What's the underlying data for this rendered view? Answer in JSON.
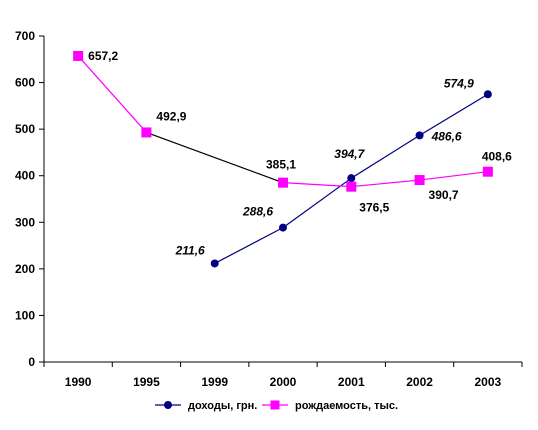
{
  "chart_data": {
    "type": "line",
    "title": "",
    "xlabel": "",
    "ylabel": "",
    "categories": [
      "1990",
      "1995",
      "1999",
      "2000",
      "2001",
      "2002",
      "2003"
    ],
    "y_ticks": [
      "0",
      "100",
      "200",
      "300",
      "400",
      "500",
      "600",
      "700"
    ],
    "ylim": [
      0,
      700
    ],
    "grid": false,
    "legend_position": "bottom",
    "series": [
      {
        "name": "доходы, грн.",
        "color": "#000080",
        "marker": "circle",
        "label_style": "bold-italic",
        "values": [
          null,
          null,
          211.6,
          288.6,
          394.7,
          486.6,
          574.9
        ],
        "labels": [
          "",
          "",
          "211,6",
          "288,6",
          "394,7",
          "486,6",
          "574,9"
        ]
      },
      {
        "name": "рождаемость, тыс.",
        "color": "#FF00FF",
        "marker": "square",
        "label_style": "bold",
        "values": [
          657.2,
          492.9,
          null,
          385.1,
          376.5,
          390.7,
          408.6
        ],
        "labels": [
          "657,2",
          "492,9",
          "",
          "385,1",
          "376,5",
          "390,7",
          "408,6"
        ]
      }
    ]
  }
}
